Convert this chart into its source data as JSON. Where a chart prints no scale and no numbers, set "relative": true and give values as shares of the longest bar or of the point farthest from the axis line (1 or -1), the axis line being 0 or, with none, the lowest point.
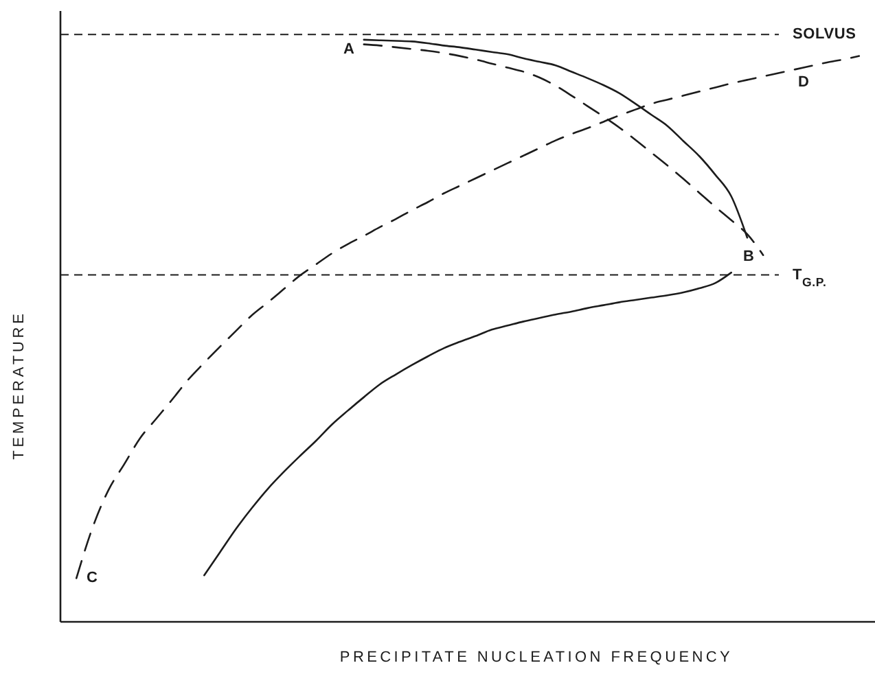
{
  "chart_data": {
    "type": "line",
    "xlabel": "PRECIPITATE NUCLEATION FREQUENCY",
    "ylabel": "TEMPERATURE",
    "relative": true,
    "categories": [
      null,
      null,
      null,
      null,
      null,
      null,
      null,
      null,
      null,
      null,
      null,
      null,
      null,
      null,
      null,
      null,
      null,
      null,
      null,
      null,
      null,
      null,
      null,
      null,
      null,
      null,
      null,
      null,
      null,
      null,
      null,
      null,
      null,
      null,
      null,
      null,
      null,
      null,
      null,
      null,
      null,
      null,
      null,
      null,
      null,
      null,
      null,
      null,
      null,
      null
    ],
    "series": [
      {
        "color": "#1c1c1c",
        "line_style": "solid",
        "values": [
          null,
          null,
          null,
          null,
          null,
          null,
          null,
          null,
          null,
          null,
          null,
          null,
          null,
          null,
          null,
          null,
          null,
          null,
          1.0,
          0.999,
          0.998,
          0.997,
          0.994,
          0.99,
          0.987,
          0.983,
          0.979,
          0.975,
          0.968,
          0.962,
          0.956,
          0.945,
          0.934,
          0.922,
          0.908,
          0.89,
          0.871,
          0.852,
          0.826,
          0.8,
          0.768,
          0.731,
          0.66,
          null,
          null,
          null,
          null,
          null,
          null,
          null
        ]
      },
      {
        "color": "#1c1c1c",
        "line_style": "solid",
        "values": [
          null,
          null,
          null,
          null,
          null,
          null,
          null,
          null,
          0.08,
          0.12,
          0.16,
          0.196,
          0.229,
          0.258,
          0.285,
          0.311,
          0.339,
          0.363,
          0.386,
          0.408,
          0.425,
          0.441,
          0.456,
          0.47,
          0.481,
          0.491,
          0.502,
          0.509,
          0.516,
          0.522,
          0.528,
          0.533,
          0.539,
          0.544,
          0.549,
          0.553,
          0.557,
          0.561,
          0.566,
          0.573,
          0.582,
          0.6,
          null,
          null,
          null,
          null,
          null,
          null,
          null,
          null
        ]
      },
      {
        "color": "#1c1c1c",
        "line_style": "dashed",
        "values": [
          null,
          null,
          null,
          null,
          null,
          null,
          null,
          null,
          null,
          null,
          null,
          null,
          null,
          null,
          null,
          null,
          null,
          null,
          0.992,
          0.99,
          0.987,
          0.984,
          0.981,
          0.977,
          0.972,
          0.966,
          0.959,
          0.952,
          0.945,
          0.935,
          0.921,
          0.904,
          0.886,
          0.868,
          0.849,
          0.828,
          0.806,
          0.784,
          0.761,
          0.737,
          0.713,
          0.69,
          0.666,
          0.63,
          null,
          null,
          null,
          null,
          null,
          null
        ]
      },
      {
        "color": "#1c1c1c",
        "line_style": "dashed",
        "values": [
          0.075,
          0.161,
          0.226,
          0.271,
          0.316,
          0.349,
          0.382,
          0.416,
          0.445,
          0.473,
          0.5,
          0.527,
          0.549,
          0.572,
          0.595,
          0.614,
          0.633,
          0.649,
          0.663,
          0.678,
          0.692,
          0.707,
          0.721,
          0.736,
          0.749,
          0.762,
          0.775,
          0.788,
          0.801,
          0.814,
          0.827,
          0.838,
          0.848,
          0.859,
          0.87,
          0.88,
          0.89,
          0.897,
          0.904,
          0.911,
          0.918,
          0.925,
          0.931,
          0.937,
          0.943,
          0.949,
          0.955,
          0.961,
          0.966,
          0.972
        ]
      }
    ],
    "ref_lines": [
      {
        "axis": "y",
        "value": 1.009,
        "label": "SOLVUS",
        "line_style": "dashed",
        "color": "#1c1c1c"
      },
      {
        "axis": "y",
        "value": 0.596,
        "label": "T$_{G.P.}$",
        "line_style": "dashed",
        "color": "#1c1c1c"
      }
    ],
    "annotations": [
      "A",
      "B",
      "C",
      "D"
    ]
  }
}
